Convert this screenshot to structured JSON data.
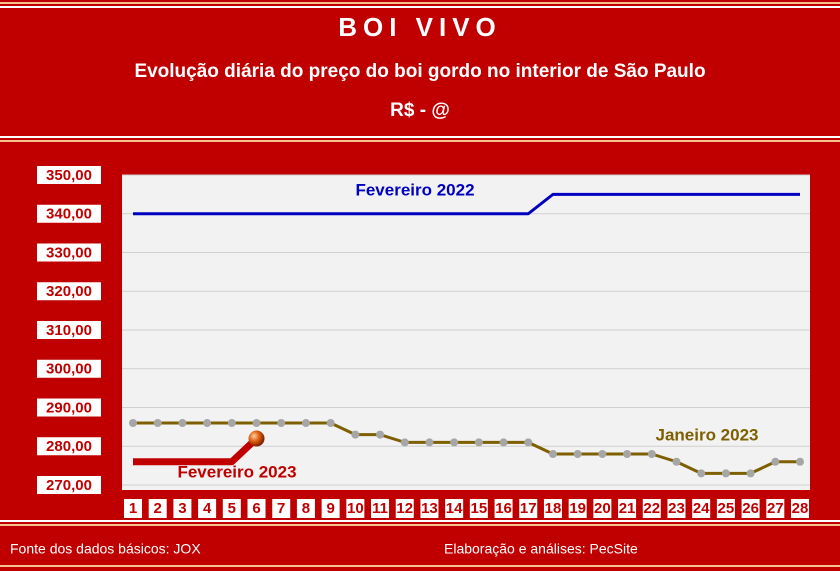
{
  "chart_data": {
    "type": "line",
    "title": "BOI VIVO",
    "subtitle": "Evolução diária do preço do boi gordo no interior de São Paulo",
    "unit": "R$ - @",
    "categories": [
      "1",
      "2",
      "3",
      "4",
      "5",
      "6",
      "7",
      "8",
      "9",
      "10",
      "11",
      "12",
      "13",
      "14",
      "15",
      "16",
      "17",
      "18",
      "19",
      "20",
      "21",
      "22",
      "23",
      "24",
      "25",
      "26",
      "27",
      "28"
    ],
    "ylim": [
      270,
      350
    ],
    "yticks": [
      {
        "value": 270,
        "label": "270,00"
      },
      {
        "value": 280,
        "label": "280,00"
      },
      {
        "value": 290,
        "label": "290,00"
      },
      {
        "value": 300,
        "label": "300,00"
      },
      {
        "value": 310,
        "label": "310,00"
      },
      {
        "value": 320,
        "label": "320,00"
      },
      {
        "value": 330,
        "label": "330,00"
      },
      {
        "value": 340,
        "label": "340,00"
      },
      {
        "value": 350,
        "label": "350,00"
      }
    ],
    "grid": true,
    "series": [
      {
        "name": "Fevereiro 2022",
        "color": "#0000c0",
        "values": [
          340,
          340,
          340,
          340,
          340,
          340,
          340,
          340,
          340,
          340,
          340,
          340,
          340,
          340,
          340,
          340,
          340,
          345,
          345,
          345,
          345,
          345,
          345,
          345,
          345,
          345,
          345,
          345
        ]
      },
      {
        "name": "Janeiro 2023",
        "color": "#7f6000",
        "marker": "circle",
        "values": [
          286,
          286,
          286,
          286,
          286,
          286,
          286,
          286,
          286,
          283,
          283,
          281,
          281,
          281,
          281,
          281,
          281,
          278,
          278,
          278,
          278,
          278,
          276,
          273,
          273,
          273,
          276,
          276
        ]
      },
      {
        "name": "Fevereiro 2023",
        "color": "#c00000",
        "end_marker": true,
        "values": [
          276,
          276,
          276,
          276,
          276,
          282,
          null,
          null,
          null,
          null,
          null,
          null,
          null,
          null,
          null,
          null,
          null,
          null,
          null,
          null,
          null,
          null,
          null,
          null,
          null,
          null,
          null,
          null
        ]
      }
    ],
    "footer_left": "Fonte dos dados básicos: JOX",
    "footer_right": "Elaboração e análises: PecSite"
  }
}
